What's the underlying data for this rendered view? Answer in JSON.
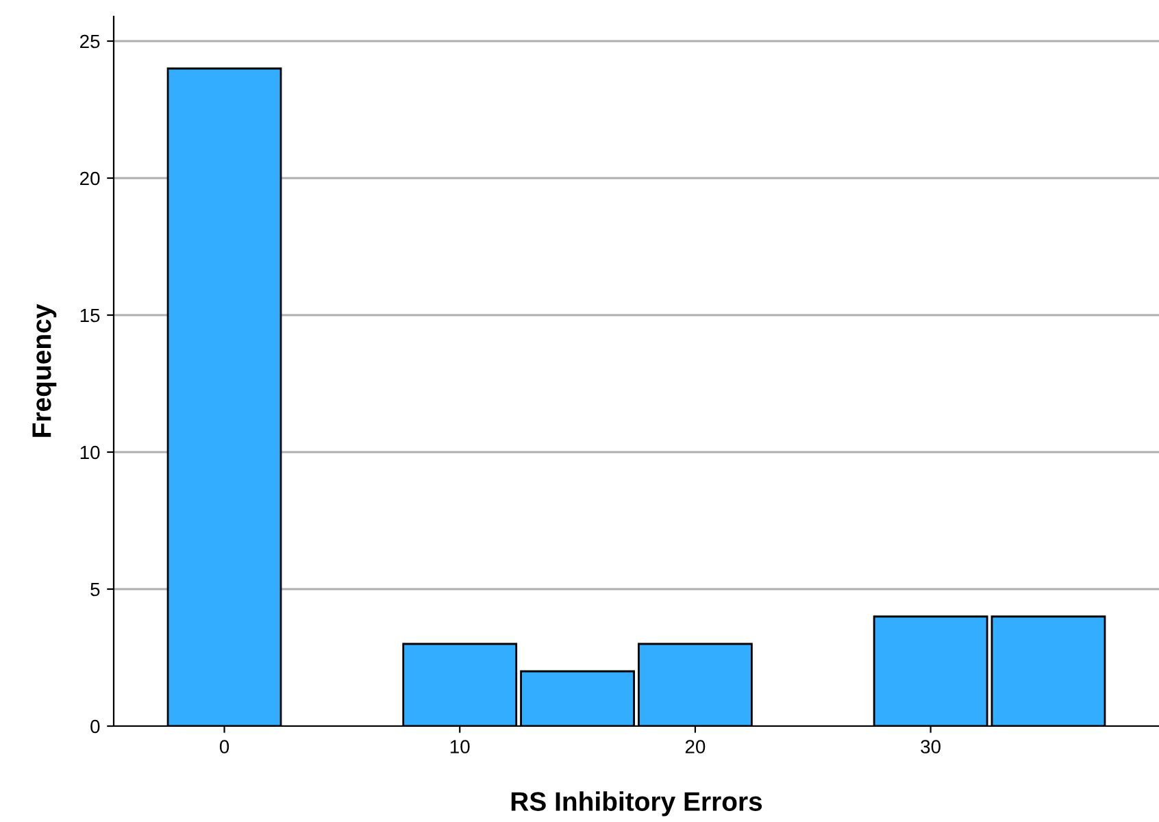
{
  "chart_data": {
    "type": "histogram",
    "xlabel": "RS Inhibitory Errors",
    "ylabel": "Frequency",
    "bins": [
      -2.5,
      2.5,
      7.5,
      12.5,
      17.5,
      22.5,
      27.5,
      32.5,
      37.5
    ],
    "values": [
      24,
      0,
      3,
      2,
      3,
      0,
      4,
      4
    ],
    "color": "#33adff",
    "xlim": [
      -4.7,
      39.7
    ],
    "xticks": [
      0,
      10,
      20,
      30
    ],
    "ylim": [
      0,
      25.9
    ],
    "yticks": [
      0,
      5,
      10,
      15,
      20,
      25
    ],
    "grid": "y"
  }
}
